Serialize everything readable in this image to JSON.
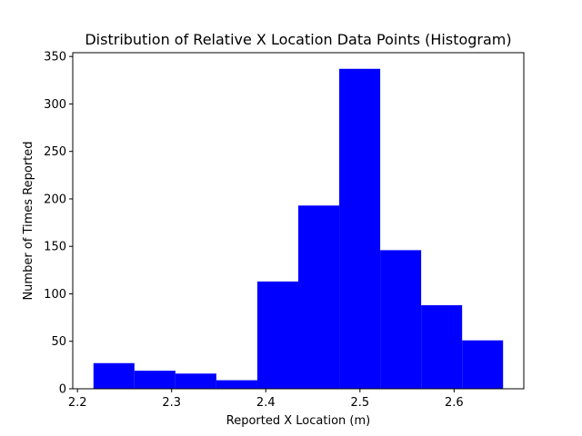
{
  "chart_data": {
    "type": "bar",
    "title": "Distribution of Relative X Location Data Points (Histogram)",
    "xlabel": "Reported X Location (m)",
    "ylabel": "Number of Times Reported",
    "bin_edges": [
      2.217,
      2.2605,
      2.304,
      2.3475,
      2.391,
      2.4345,
      2.478,
      2.5215,
      2.565,
      2.6085,
      2.652
    ],
    "values": [
      27,
      19,
      16,
      9,
      113,
      193,
      337,
      146,
      88,
      51
    ],
    "xlim": [
      2.195,
      2.674
    ],
    "ylim": [
      0,
      354
    ],
    "x_ticks": [
      2.2,
      2.3,
      2.4,
      2.5,
      2.6
    ],
    "x_tick_labels": [
      "2.2",
      "2.3",
      "2.4",
      "2.5",
      "2.6"
    ],
    "y_ticks": [
      0,
      50,
      100,
      150,
      200,
      250,
      300,
      350
    ],
    "y_tick_labels": [
      "0",
      "50",
      "100",
      "150",
      "200",
      "250",
      "300",
      "350"
    ],
    "bar_color": "#0000ff",
    "grid": false,
    "legend": "none"
  }
}
